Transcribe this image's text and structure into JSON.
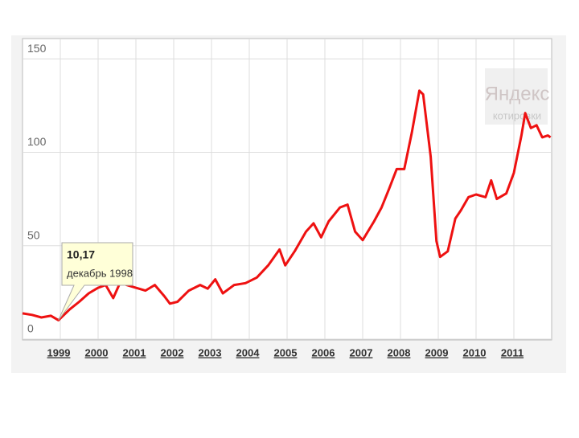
{
  "chart_data": {
    "type": "line",
    "x": [
      1998.0,
      1998.25,
      1998.5,
      1998.75,
      1998.95,
      1999.25,
      1999.5,
      1999.75,
      2000.0,
      2000.2,
      2000.4,
      2000.6,
      2000.75,
      2001.0,
      2001.25,
      2001.5,
      2001.75,
      2001.9,
      2002.1,
      2002.4,
      2002.7,
      2002.9,
      2003.1,
      2003.3,
      2003.6,
      2003.9,
      2004.2,
      2004.5,
      2004.8,
      2004.95,
      2005.2,
      2005.5,
      2005.7,
      2005.9,
      2006.1,
      2006.4,
      2006.6,
      2006.8,
      2007.0,
      2007.3,
      2007.5,
      2007.7,
      2007.9,
      2008.1,
      2008.3,
      2008.5,
      2008.6,
      2008.8,
      2008.95,
      2009.05,
      2009.25,
      2009.45,
      2009.6,
      2009.8,
      2010.0,
      2010.25,
      2010.4,
      2010.55,
      2010.8,
      2011.0,
      2011.2,
      2011.3,
      2011.45,
      2011.6,
      2011.75,
      2011.9,
      2011.97
    ],
    "series": [
      {
        "color": "#ee1111",
        "values": [
          13.8,
          13,
          11.6,
          12.5,
          10.17,
          16,
          20,
          24.5,
          27.5,
          29,
          22,
          31,
          29,
          27.5,
          26,
          29,
          23,
          19,
          20,
          26,
          29,
          27,
          32,
          24.5,
          29,
          30,
          33,
          39.5,
          48,
          39.5,
          47,
          57.5,
          62,
          54.5,
          63,
          70.5,
          72,
          57.5,
          53,
          63,
          70.5,
          80.5,
          91,
          91,
          110.5,
          133,
          131,
          97.6,
          52.5,
          44,
          47,
          64.5,
          69,
          76,
          77.4,
          76,
          85,
          75,
          78,
          89,
          109,
          121,
          113,
          114.5,
          108,
          109,
          108
        ]
      }
    ],
    "xlim": [
      1998,
      2012
    ],
    "xticks": [
      1999,
      2000,
      2001,
      2002,
      2003,
      2004,
      2005,
      2006,
      2007,
      2008,
      2009,
      2010,
      2011
    ],
    "ylim": [
      0,
      160
    ],
    "yticks": [
      0,
      50,
      100,
      150
    ],
    "grid": true,
    "watermark": {
      "title": "Яндекс",
      "subtitle": "котировки"
    },
    "tooltip": {
      "x": 1998.95,
      "y": 10.17,
      "label": "10,17",
      "date": "декабрь 1998"
    }
  }
}
